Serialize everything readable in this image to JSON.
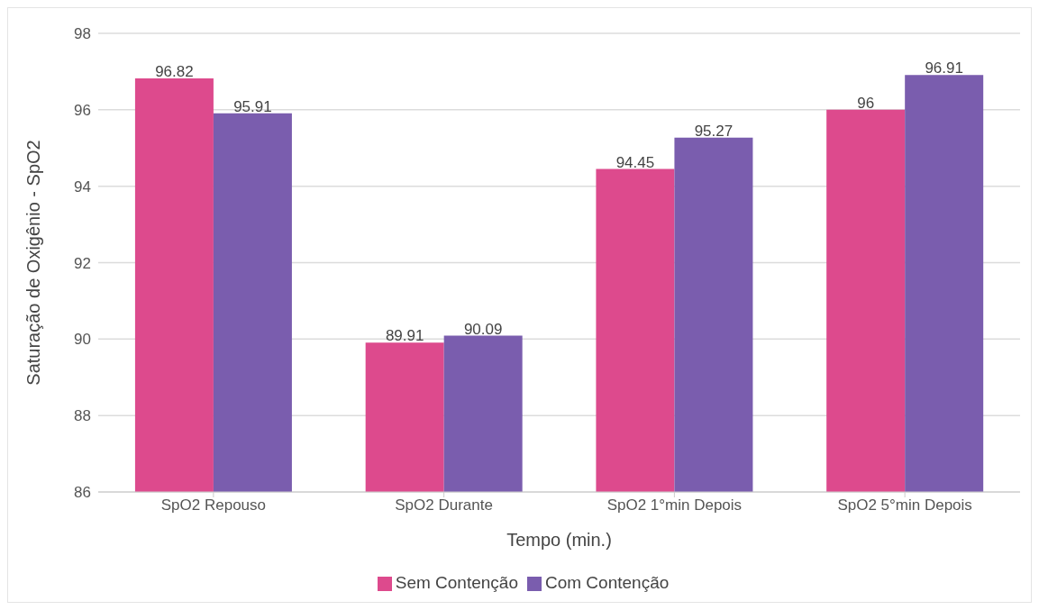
{
  "chart_data": {
    "type": "bar",
    "xlabel": "Tempo (min.)",
    "ylabel": "Saturação de Oxigênio - SpO2",
    "categories": [
      "SpO2 Repouso",
      "SpO2 Durante",
      "SpO2 1°min Depois",
      "SpO2 5°min Depois"
    ],
    "series": [
      {
        "name": "Sem Contenção",
        "color": "#dd4a8d",
        "values": [
          96.82,
          89.91,
          94.45,
          96
        ]
      },
      {
        "name": "Com Contenção",
        "color": "#7a5dae",
        "values": [
          95.91,
          90.09,
          95.27,
          96.91
        ]
      }
    ],
    "ylim": [
      86,
      98
    ],
    "yticks": [
      86,
      88,
      90,
      92,
      94,
      96,
      98
    ],
    "grid": "y",
    "legend": "bottom",
    "data_labels": true
  }
}
